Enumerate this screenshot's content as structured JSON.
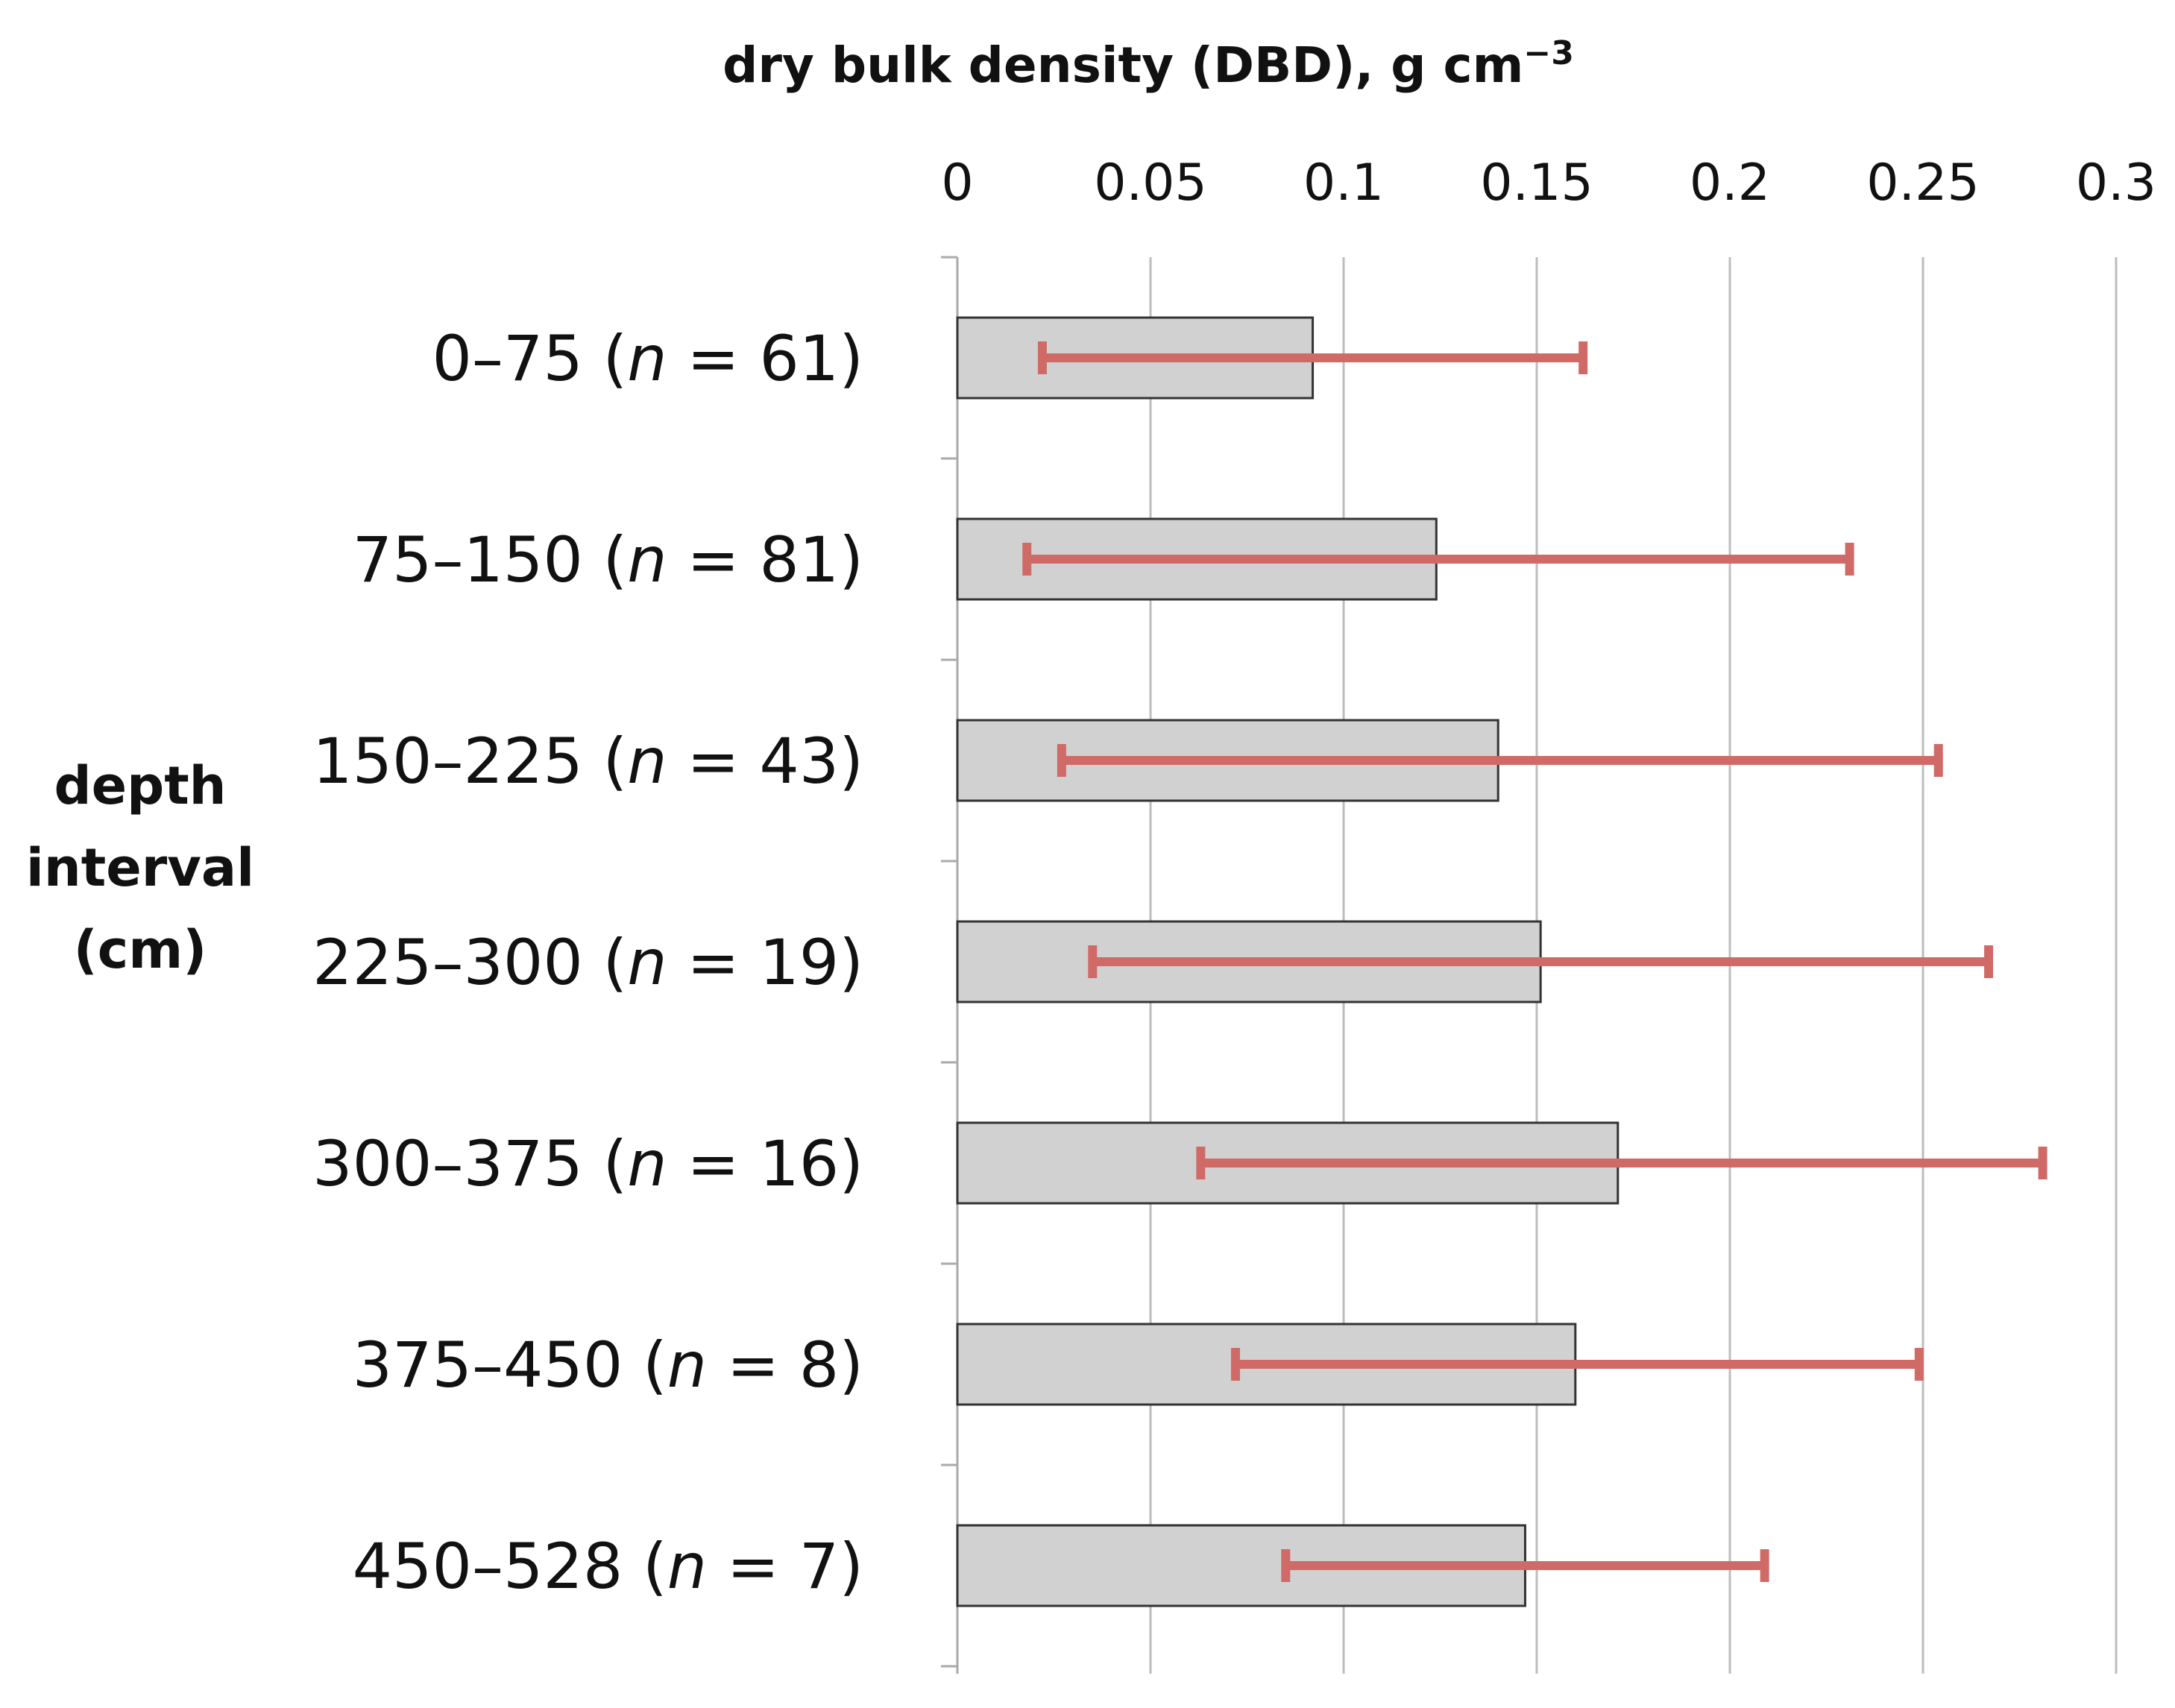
{
  "chart_data": {
    "type": "bar",
    "orientation": "horizontal",
    "title": "",
    "xlabel": "dry bulk density (DBD), g cm",
    "xlabel_superscript": "−3",
    "ylabel": [
      "depth",
      "interval",
      "(cm)"
    ],
    "xlim": [
      0,
      0.3
    ],
    "xticks": [
      "0",
      "0.05",
      "0.1",
      "0.15",
      "0.2",
      "0.25",
      "0.3"
    ],
    "grid": "vertical",
    "categories": [
      {
        "range": "0–75 (",
        "n_sym": "n",
        "count": " = 61)"
      },
      {
        "range": "75–150 (",
        "n_sym": "n",
        "count": " = 81)"
      },
      {
        "range": "150–225 (",
        "n_sym": "n",
        "count": " = 43)"
      },
      {
        "range": "225–300 (",
        "n_sym": "n",
        "count": " = 19)"
      },
      {
        "range": "300–375 (",
        "n_sym": "n",
        "count": " = 16)"
      },
      {
        "range": "375–450 (",
        "n_sym": "n",
        "count": " = 8)"
      },
      {
        "range": "450–528 (",
        "n_sym": "n",
        "count": " = 7)"
      }
    ],
    "values": [
      0.092,
      0.124,
      0.14,
      0.151,
      0.171,
      0.16,
      0.147
    ],
    "error_low": [
      0.022,
      0.018,
      0.027,
      0.035,
      0.063,
      0.072,
      0.085
    ],
    "error_high": [
      0.162,
      0.231,
      0.254,
      0.267,
      0.281,
      0.249,
      0.209
    ],
    "colors": {
      "bar_fill": "#d1d1d1",
      "bar_stroke": "#333333",
      "error_bar": "#d06a66",
      "grid": "#bdbdbd",
      "axis": "#aaaaaa"
    }
  }
}
